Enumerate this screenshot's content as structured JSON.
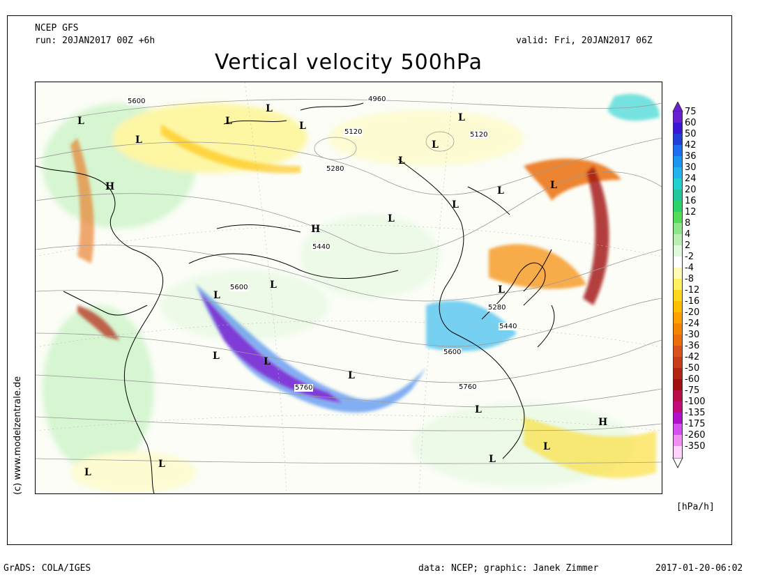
{
  "header": {
    "model": "NCEP GFS",
    "run": "run: 20JAN2017 00Z +6h",
    "valid": "valid: Fri, 20JAN2017 06Z",
    "title": "Vertical velocity 500hPa"
  },
  "side_credit": "(c) www.modelzentrale.de",
  "legend": {
    "unit": "[hPa/h]",
    "items": [
      {
        "label": "75",
        "color": "#6a1fd1"
      },
      {
        "label": "60",
        "color": "#3b16d9"
      },
      {
        "label": "50",
        "color": "#1f3fd6"
      },
      {
        "label": "42",
        "color": "#1e6df0"
      },
      {
        "label": "36",
        "color": "#1b94f0"
      },
      {
        "label": "30",
        "color": "#22b3ee"
      },
      {
        "label": "24",
        "color": "#1fd0d0"
      },
      {
        "label": "20",
        "color": "#21c79a"
      },
      {
        "label": "16",
        "color": "#2dd36a"
      },
      {
        "label": "12",
        "color": "#52dc5a"
      },
      {
        "label": "8",
        "color": "#8de68a"
      },
      {
        "label": "4",
        "color": "#b8f0b4"
      },
      {
        "label": "2",
        "color": "#e0f8dc"
      },
      {
        "label": "-2",
        "color": "#ffffff"
      },
      {
        "label": "-4",
        "color": "#fffbb5"
      },
      {
        "label": "-8",
        "color": "#fff160"
      },
      {
        "label": "-12",
        "color": "#ffd91a"
      },
      {
        "label": "-16",
        "color": "#ffbf00"
      },
      {
        "label": "-20",
        "color": "#ffa200"
      },
      {
        "label": "-24",
        "color": "#f58700"
      },
      {
        "label": "-30",
        "color": "#ea6e0b"
      },
      {
        "label": "-36",
        "color": "#d9521e"
      },
      {
        "label": "-42",
        "color": "#c83c1a"
      },
      {
        "label": "-50",
        "color": "#b42414"
      },
      {
        "label": "-60",
        "color": "#a01010"
      },
      {
        "label": "-75",
        "color": "#b80d45"
      },
      {
        "label": "-100",
        "color": "#c40a7a"
      },
      {
        "label": "-135",
        "color": "#b010c8"
      },
      {
        "label": "-175",
        "color": "#d650f0"
      },
      {
        "label": "-260",
        "color": "#f08ef2"
      },
      {
        "label": "-350",
        "color": "#ffd2fb"
      }
    ]
  },
  "map": {
    "contour_labels": [
      "5600",
      "4960",
      "5120",
      "5120",
      "5280",
      "5440",
      "5600",
      "5280",
      "5440",
      "5600",
      "5760",
      "5760"
    ],
    "pressure_centers": [
      "L",
      "L",
      "L",
      "L",
      "L",
      "L",
      "L",
      "L",
      "L",
      "L",
      "H",
      "L",
      "L",
      "L",
      "L",
      "H",
      "L",
      "L",
      "L",
      "L",
      "L",
      "L",
      "L",
      "H",
      "L",
      "L",
      "L",
      "L"
    ]
  },
  "footer": {
    "left": "GrADS: COLA/IGES",
    "center": "data: NCEP; graphic: Janek Zimmer",
    "right": "2017-01-20-06:02"
  }
}
